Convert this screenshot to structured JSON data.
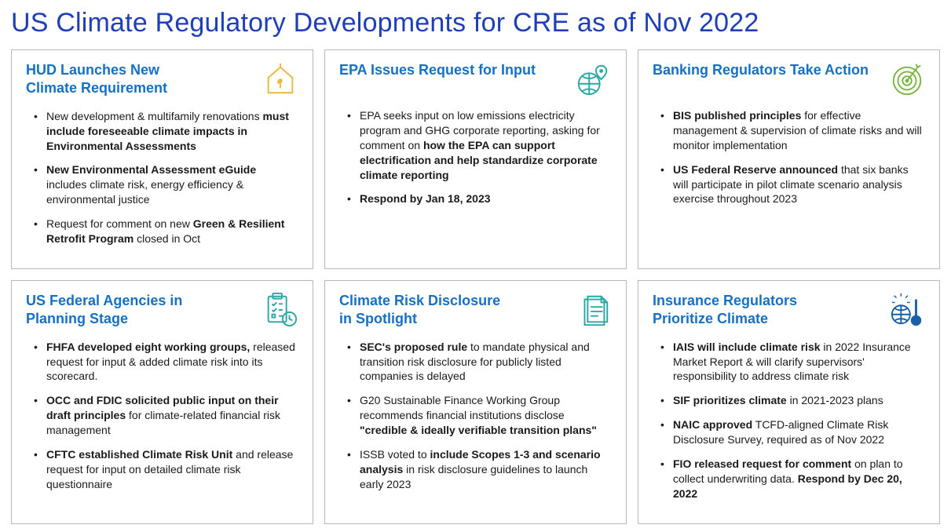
{
  "page": {
    "title": "US Climate Regulatory Developments for CRE as of Nov 2022"
  },
  "colors": {
    "title": "#1f3fb8",
    "cardTitle": "#1670c4",
    "border": "#b8b8b8",
    "text": "#1a1a1a",
    "iconYellow": "#e8b93a",
    "iconTeal": "#2aa7a3",
    "iconGreen": "#7ab63f",
    "iconBlue": "#1660a8"
  },
  "cards": [
    {
      "title": "HUD Launches New\nClimate Requirement",
      "icon": "house-leaf",
      "iconColor": "#e8b93a",
      "bullets": [
        "New development & multifamily renovations <b>must include foreseeable climate impacts in Environmental Assessments</b>",
        "<b>New Environmental Assessment eGuide</b> includes climate risk, energy efficiency & environmental justice",
        "Request for comment on new <b>Green & Resilient Retrofit Program</b> closed in Oct"
      ]
    },
    {
      "title": "EPA Issues Request for Input",
      "icon": "globe-pin",
      "iconColor": "#2aa7a3",
      "bullets": [
        "EPA seeks input on low emissions electricity program and GHG corporate reporting, asking for comment on <b>how the EPA can support electrification and help standardize corporate climate reporting</b>",
        "<b>Respond by Jan 18, 2023</b>"
      ]
    },
    {
      "title": "Banking Regulators Take Action",
      "icon": "target",
      "iconColor": "#7ab63f",
      "bullets": [
        "<b>BIS published principles</b> for effective management & supervision of climate risks and will monitor implementation",
        "<b>US Federal Reserve announced</b> that six banks will participate in pilot climate scenario analysis exercise throughout 2023"
      ]
    },
    {
      "title": "US Federal Agencies in\nPlanning Stage",
      "icon": "clipboard-clock",
      "iconColor": "#2aa7a3",
      "bullets": [
        "<b>FHFA developed eight working groups,</b> released request for input & added climate risk into its scorecard.",
        "<b>OCC and FDIC solicited public input on their draft principles</b> for climate-related financial risk management",
        "<b>CFTC established Climate Risk Unit</b> and release request for input on detailed climate risk questionnaire"
      ]
    },
    {
      "title": "Climate Risk Disclosure\nin Spotlight",
      "icon": "document",
      "iconColor": "#2aa7a3",
      "bullets": [
        "<b>SEC's proposed rule</b> to mandate physical and transition risk disclosure for publicly listed companies is delayed",
        "G20 Sustainable Finance Working Group recommends financial institutions disclose <b>\"credible & ideally verifiable transition plans\"</b>",
        "ISSB voted to <b>include Scopes 1-3 and scenario analysis</b> in risk disclosure guidelines to launch early 2023"
      ]
    },
    {
      "title": "Insurance Regulators\nPrioritize Climate",
      "icon": "thermometer-globe",
      "iconColor": "#1660a8",
      "bullets": [
        "<b>IAIS will include climate risk</b> in 2022 Insurance Market Report & will clarify supervisors' responsibility to address climate risk",
        "<b>SIF prioritizes climate</b> in 2021-2023 plans",
        "<b>NAIC approved</b> TCFD-aligned Climate Risk Disclosure Survey, required as of Nov 2022",
        "<b>FIO released request for comment</b> on plan to collect underwriting data. <b>Respond by Dec 20, 2022</b>"
      ]
    }
  ]
}
